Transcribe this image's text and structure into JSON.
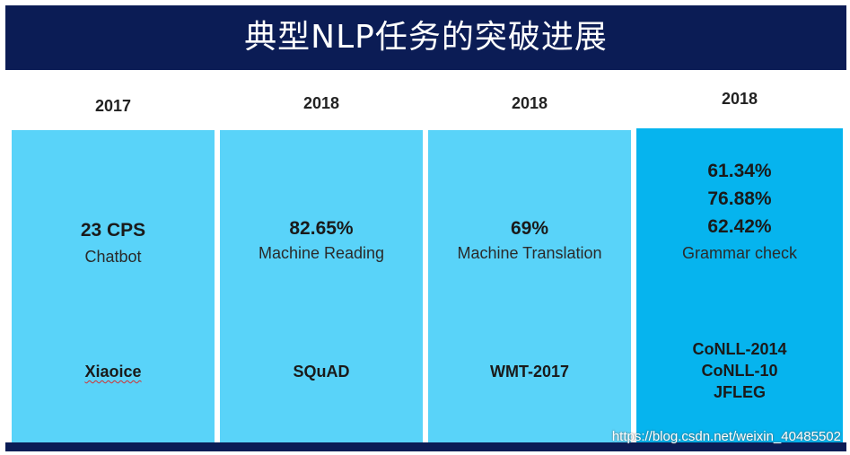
{
  "title": "典型NLP任务的突破进展",
  "colors": {
    "header_bg": "#0b1c55",
    "card_bg": "#59d3f9",
    "card_highlight_bg": "#06b4ee"
  },
  "columns": [
    {
      "year": "2017",
      "metrics": [
        "23 CPS"
      ],
      "task": "Chatbot",
      "datasets": [
        "Xiaoice"
      ]
    },
    {
      "year": "2018",
      "metrics": [
        "82.65%"
      ],
      "task": "Machine Reading",
      "datasets": [
        "SQuAD"
      ]
    },
    {
      "year": "2018",
      "metrics": [
        "69%"
      ],
      "task": "Machine Translation",
      "datasets": [
        "WMT-2017"
      ]
    },
    {
      "year": "2018",
      "metrics": [
        "61.34%",
        "76.88%",
        "62.42%"
      ],
      "task": "Grammar check",
      "datasets": [
        "CoNLL-2014",
        "CoNLL-10",
        "JFLEG"
      ]
    }
  ],
  "watermark": "https://blog.csdn.net/weixin_40485502"
}
